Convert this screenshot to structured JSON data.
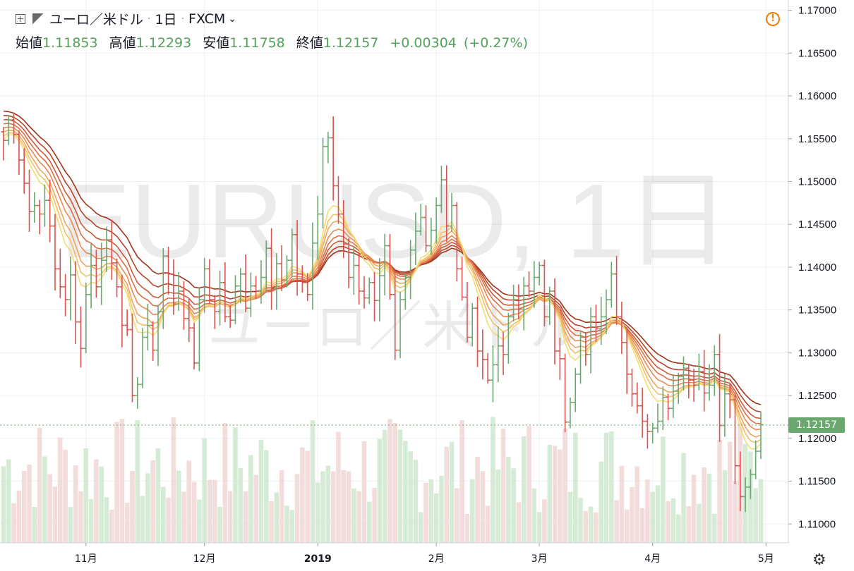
{
  "header": {
    "symbol_name": "ユーロ／米ドル",
    "interval": "1日",
    "exchange": "FXCM",
    "ohlc": [
      {
        "label": "始値",
        "value": "1.11853"
      },
      {
        "label": "高値",
        "value": "1.12293"
      },
      {
        "label": "安値",
        "value": "1.11758"
      },
      {
        "label": "終値",
        "value": "1.12157"
      }
    ],
    "change": "+0.00304",
    "change_pct": "(+0.27%)"
  },
  "watermark": {
    "main": "EURUSD, 1日",
    "sub": "ユーロ／米ドル"
  },
  "last_price_label": "1.12157",
  "colors": {
    "up": "#6aa86f",
    "down": "#d9534f",
    "up_volume": "#cfe7cf",
    "down_volume": "#f0d6d6",
    "ribbon": [
      "#a0341c",
      "#b8452a",
      "#cc5a38",
      "#dc7046",
      "#e88a52",
      "#f0a55e",
      "#f3c068",
      "#f5dc72"
    ],
    "last_price": "#6aa86f"
  },
  "chart_data": {
    "type": "ohlc",
    "title": "EURUSD, 1日",
    "y_range": [
      1.1078,
      1.1712
    ],
    "y_ticks": [
      "1.17000",
      "1.16500",
      "1.16000",
      "1.15500",
      "1.15000",
      "1.14500",
      "1.14000",
      "1.13500",
      "1.13000",
      "1.12500",
      "1.12000",
      "1.11500",
      "1.11000"
    ],
    "x_ticks": [
      {
        "label": "11月",
        "index": 16
      },
      {
        "label": "12月",
        "index": 39
      },
      {
        "label": "2019",
        "index": 61
      },
      {
        "label": "2月",
        "index": 84
      },
      {
        "label": "3月",
        "index": 104
      },
      {
        "label": "4月",
        "index": 126
      },
      {
        "label": "5月",
        "index": 148
      }
    ],
    "close_series": [
      1.1548,
      1.1572,
      1.1555,
      1.1525,
      1.1498,
      1.1465,
      1.1472,
      1.1462,
      1.1478,
      1.1448,
      1.1398,
      1.1377,
      1.1362,
      1.1391,
      1.1336,
      1.1305,
      1.1368,
      1.1402,
      1.1377,
      1.1408,
      1.1432,
      1.1405,
      1.1377,
      1.1332,
      1.1327,
      1.125,
      1.1263,
      1.1318,
      1.1332,
      1.1303,
      1.1348,
      1.1413,
      1.1392,
      1.1357,
      1.1372,
      1.134,
      1.1329,
      1.1288,
      1.1362,
      1.1398,
      1.1362,
      1.1348,
      1.1382,
      1.1342,
      1.1338,
      1.1378,
      1.1392,
      1.1352,
      1.1378,
      1.1372,
      1.1388,
      1.1422,
      1.1375,
      1.1404,
      1.1385,
      1.1408,
      1.1438,
      1.1392,
      1.1382,
      1.1368,
      1.1428,
      1.1462,
      1.1541,
      1.1551,
      1.1495,
      1.1462,
      1.1427,
      1.1388,
      1.1402,
      1.1372,
      1.1364,
      1.1382,
      1.1361,
      1.139,
      1.1425,
      1.1368,
      1.1303,
      1.1362,
      1.1388,
      1.142,
      1.1442,
      1.1458,
      1.1425,
      1.1443,
      1.1472,
      1.1502,
      1.1448,
      1.1472,
      1.1398,
      1.1365,
      1.1318,
      1.1352,
      1.1302,
      1.1292,
      1.1268,
      1.1286,
      1.1308,
      1.1298,
      1.1342,
      1.1362,
      1.1351,
      1.1378,
      1.1372,
      1.1388,
      1.1402,
      1.1342,
      1.1372,
      1.1302,
      1.1293,
      1.1219,
      1.1242,
      1.1275,
      1.1318,
      1.1298,
      1.1342,
      1.1328,
      1.1342,
      1.1362,
      1.1392,
      1.1342,
      1.1312,
      1.1275,
      1.1252,
      1.1238,
      1.122,
      1.1208,
      1.1212,
      1.122,
      1.1248,
      1.1235,
      1.1255,
      1.1272,
      1.1282,
      1.1268,
      1.1262,
      1.1278,
      1.1253,
      1.1262,
      1.1298,
      1.1215,
      1.1252,
      1.1245,
      1.1168,
      1.1132,
      1.1143,
      1.1158,
      1.1185,
      1.1216
    ]
  }
}
